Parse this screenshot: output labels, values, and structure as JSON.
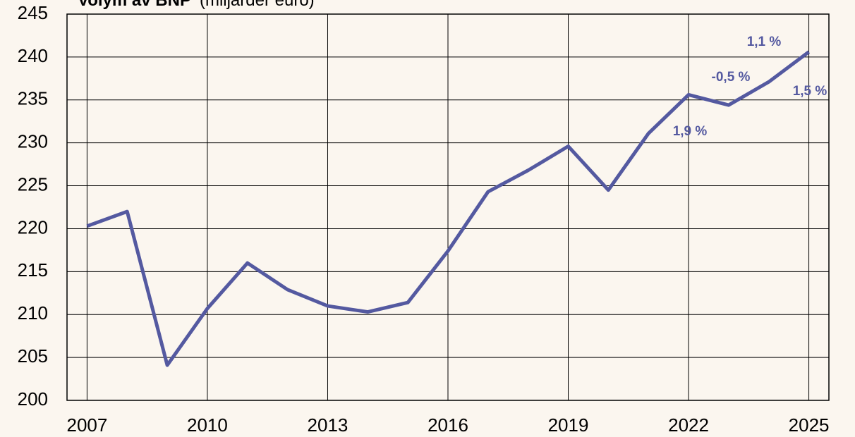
{
  "chart_data": {
    "type": "line",
    "title": "Volym av BNP",
    "subtitle": "(miljarder euro)",
    "x": [
      2007,
      2008,
      2009,
      2010,
      2011,
      2012,
      2013,
      2014,
      2015,
      2016,
      2017,
      2018,
      2019,
      2020,
      2021,
      2022,
      2023,
      2024,
      2025
    ],
    "series": [
      {
        "name": "BNP",
        "color": "#5459a0",
        "values": [
          220.3,
          222.0,
          204.1,
          210.7,
          216.0,
          212.9,
          211.0,
          210.3,
          211.4,
          217.4,
          224.3,
          226.8,
          229.6,
          224.5,
          231.1,
          235.6,
          234.4,
          237.1,
          240.6
        ]
      }
    ],
    "xlim": [
      2006.5,
      2025.5
    ],
    "xticks": [
      2007,
      2010,
      2013,
      2016,
      2019,
      2022,
      2025
    ],
    "ylim": [
      200,
      245
    ],
    "yticks": [
      200,
      205,
      210,
      215,
      220,
      225,
      230,
      235,
      240,
      245
    ],
    "grid": true,
    "annotations": [
      "1,9 %",
      "-0,5 %",
      "1,1 %",
      "1,5 %"
    ]
  }
}
